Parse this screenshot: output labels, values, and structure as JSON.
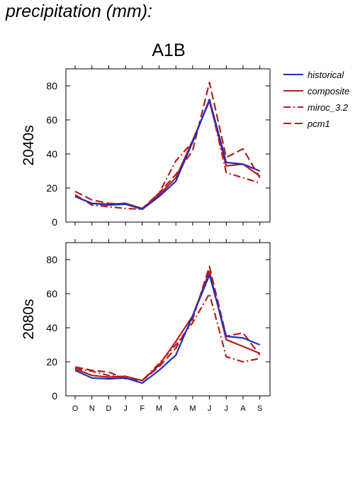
{
  "figure_title": "precipitation (mm):",
  "scenario_title": "A1B",
  "legend": [
    {
      "name": "historical",
      "color": "#1f2fbf",
      "dash": "solid"
    },
    {
      "name": "composite",
      "color": "#b71c1c",
      "dash": "solid"
    },
    {
      "name": "miroc_3.2",
      "color": "#b71c1c",
      "dash": "dashdot"
    },
    {
      "name": "pcm1",
      "color": "#b71c1c",
      "dash": "dashed"
    }
  ],
  "chart_data": [
    {
      "type": "line",
      "row_label": "2040s",
      "categories": [
        "O",
        "N",
        "D",
        "J",
        "F",
        "M",
        "A",
        "M",
        "J",
        "J",
        "A",
        "S"
      ],
      "ylim": [
        0,
        90
      ],
      "yticks": [
        0,
        20,
        40,
        60,
        80
      ],
      "series": [
        {
          "name": "historical",
          "values": [
            15,
            11,
            10,
            10.5,
            7.5,
            15,
            24,
            47,
            72,
            35,
            34,
            30
          ]
        },
        {
          "name": "composite",
          "values": [
            15,
            11,
            10.5,
            11,
            8,
            16,
            26,
            48,
            71,
            33,
            34,
            27
          ]
        },
        {
          "name": "miroc_3.2",
          "values": [
            16,
            10,
            9,
            8,
            7.5,
            17,
            36,
            47,
            72,
            29,
            26,
            23
          ]
        },
        {
          "name": "pcm1",
          "values": [
            18,
            13,
            11,
            10.5,
            8,
            17,
            28,
            42,
            82,
            38,
            43,
            26
          ]
        }
      ]
    },
    {
      "type": "line",
      "row_label": "2080s",
      "categories": [
        "O",
        "N",
        "D",
        "J",
        "F",
        "M",
        "A",
        "M",
        "J",
        "J",
        "A",
        "S"
      ],
      "ylim": [
        0,
        90
      ],
      "yticks": [
        0,
        20,
        40,
        60,
        80
      ],
      "series": [
        {
          "name": "historical",
          "values": [
            15,
            10.5,
            10,
            10.5,
            7.5,
            15,
            24,
            47,
            71,
            35,
            34,
            30
          ]
        },
        {
          "name": "composite",
          "values": [
            16,
            12,
            11,
            11.5,
            9,
            18,
            32,
            47,
            73,
            33,
            29,
            25
          ]
        },
        {
          "name": "miroc_3.2",
          "values": [
            16,
            14.5,
            12,
            11,
            9,
            19,
            30,
            43,
            60,
            23,
            20,
            22
          ]
        },
        {
          "name": "pcm1",
          "values": [
            17,
            15,
            14,
            10,
            9,
            17,
            28,
            45,
            76,
            35,
            37,
            24
          ]
        }
      ]
    }
  ]
}
